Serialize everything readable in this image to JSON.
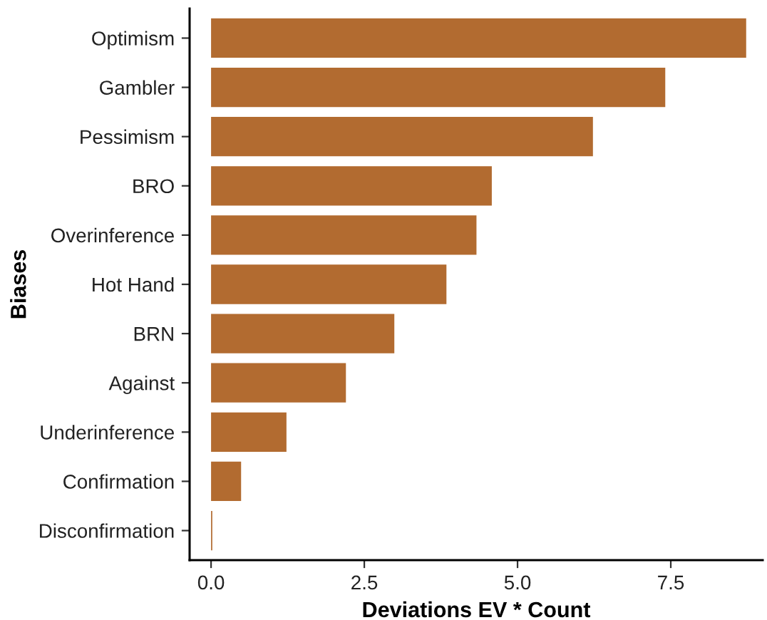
{
  "chart_data": {
    "type": "bar",
    "orientation": "horizontal",
    "xlabel": "Deviations EV * Count",
    "ylabel": "Biases",
    "categories": [
      "Optimism",
      "Gambler",
      "Pessimism",
      "BRO",
      "Overinference",
      "Hot Hand",
      "BRN",
      "Against",
      "Underinference",
      "Confirmation",
      "Disconfirmation"
    ],
    "values": [
      8.73,
      7.41,
      6.23,
      4.58,
      4.33,
      3.84,
      2.99,
      2.2,
      1.23,
      0.49,
      0.02
    ],
    "color": "#b26b30",
    "xlim": [
      -0.35,
      9.0
    ],
    "xticks": [
      {
        "value": 0,
        "label": "0.0"
      },
      2.5,
      {
        "value": 5,
        "label": "5.0"
      },
      7.5
    ],
    "grid": false,
    "legend": false
  }
}
